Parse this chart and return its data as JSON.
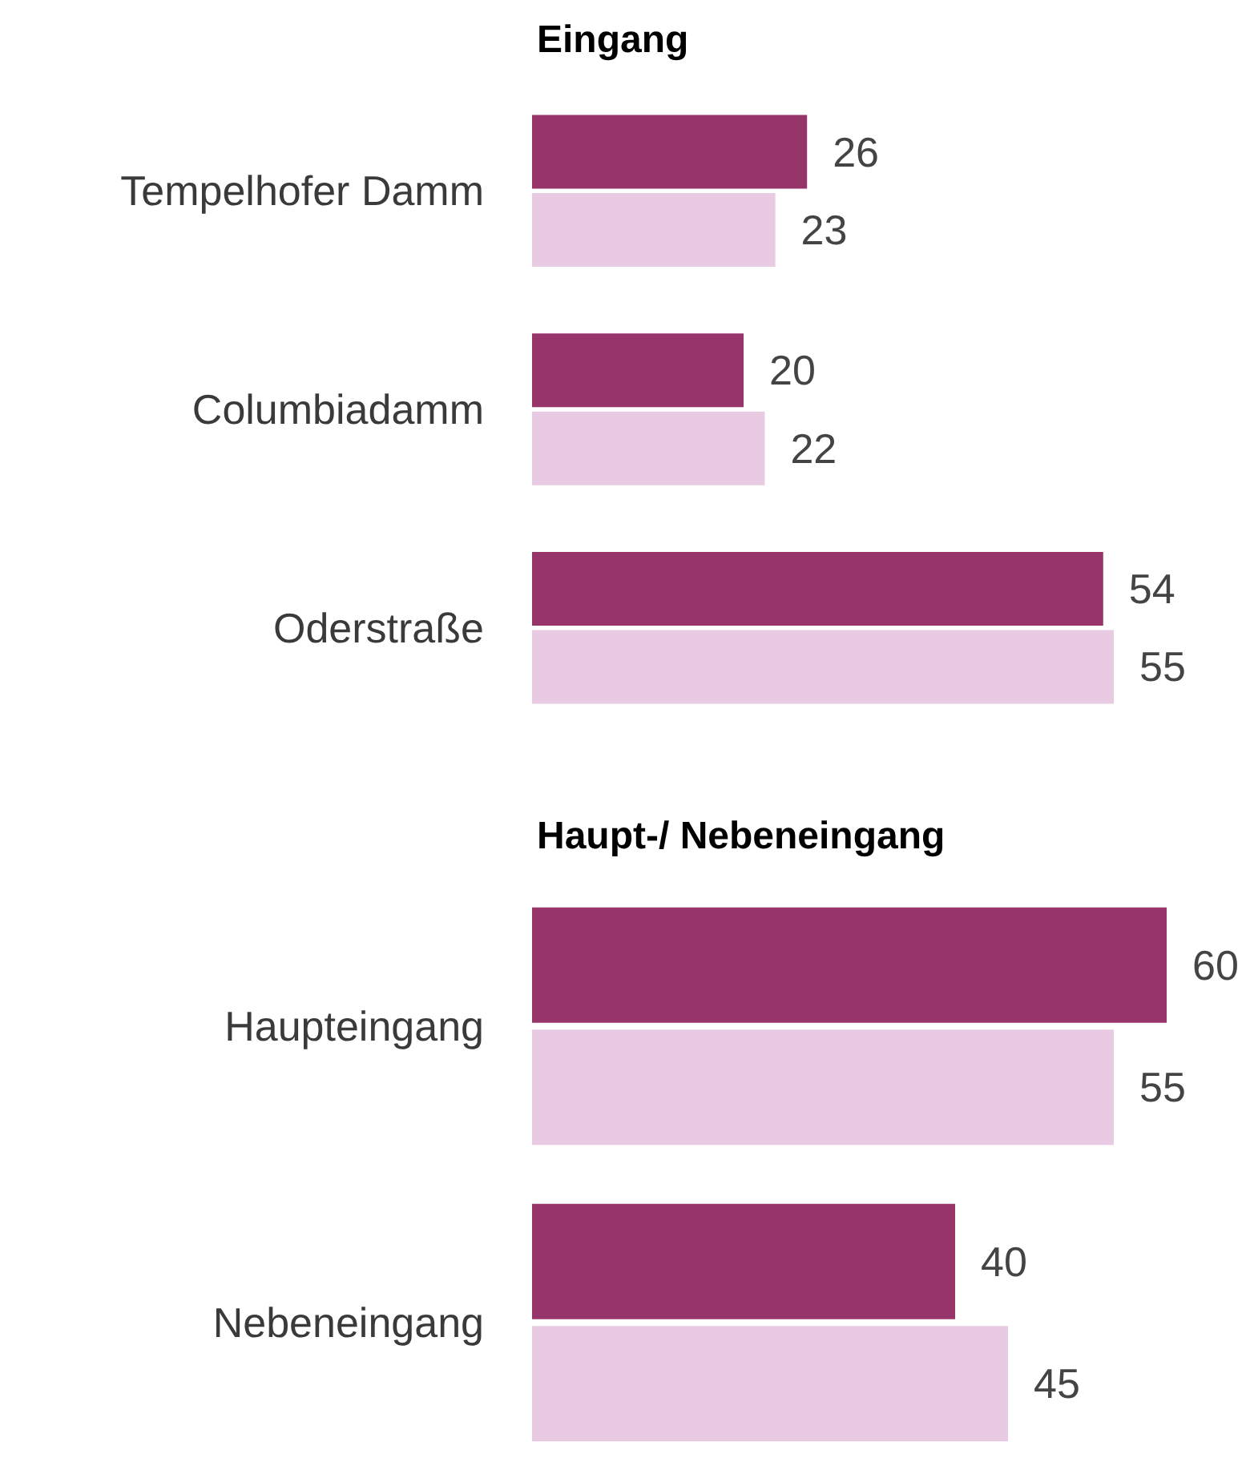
{
  "chart_data": [
    {
      "type": "bar",
      "orientation": "horizontal",
      "title": "Eingang",
      "categories": [
        "Tempelhofer Damm",
        "Columbiadamm",
        "Oderstraße"
      ],
      "series": [
        {
          "color": "#97346a",
          "values": [
            26,
            20,
            54
          ]
        },
        {
          "color": "#e8cbe3",
          "values": [
            23,
            22,
            55
          ]
        }
      ],
      "data_labels": true
    },
    {
      "type": "bar",
      "orientation": "horizontal",
      "title": "Haupt-/ Nebeneingang",
      "categories": [
        "Haupteingang",
        "Nebeneingang"
      ],
      "series": [
        {
          "color": "#97346a",
          "values": [
            60,
            40
          ]
        },
        {
          "color": "#e8cbe3",
          "values": [
            55,
            45
          ]
        }
      ],
      "data_labels": true
    }
  ]
}
